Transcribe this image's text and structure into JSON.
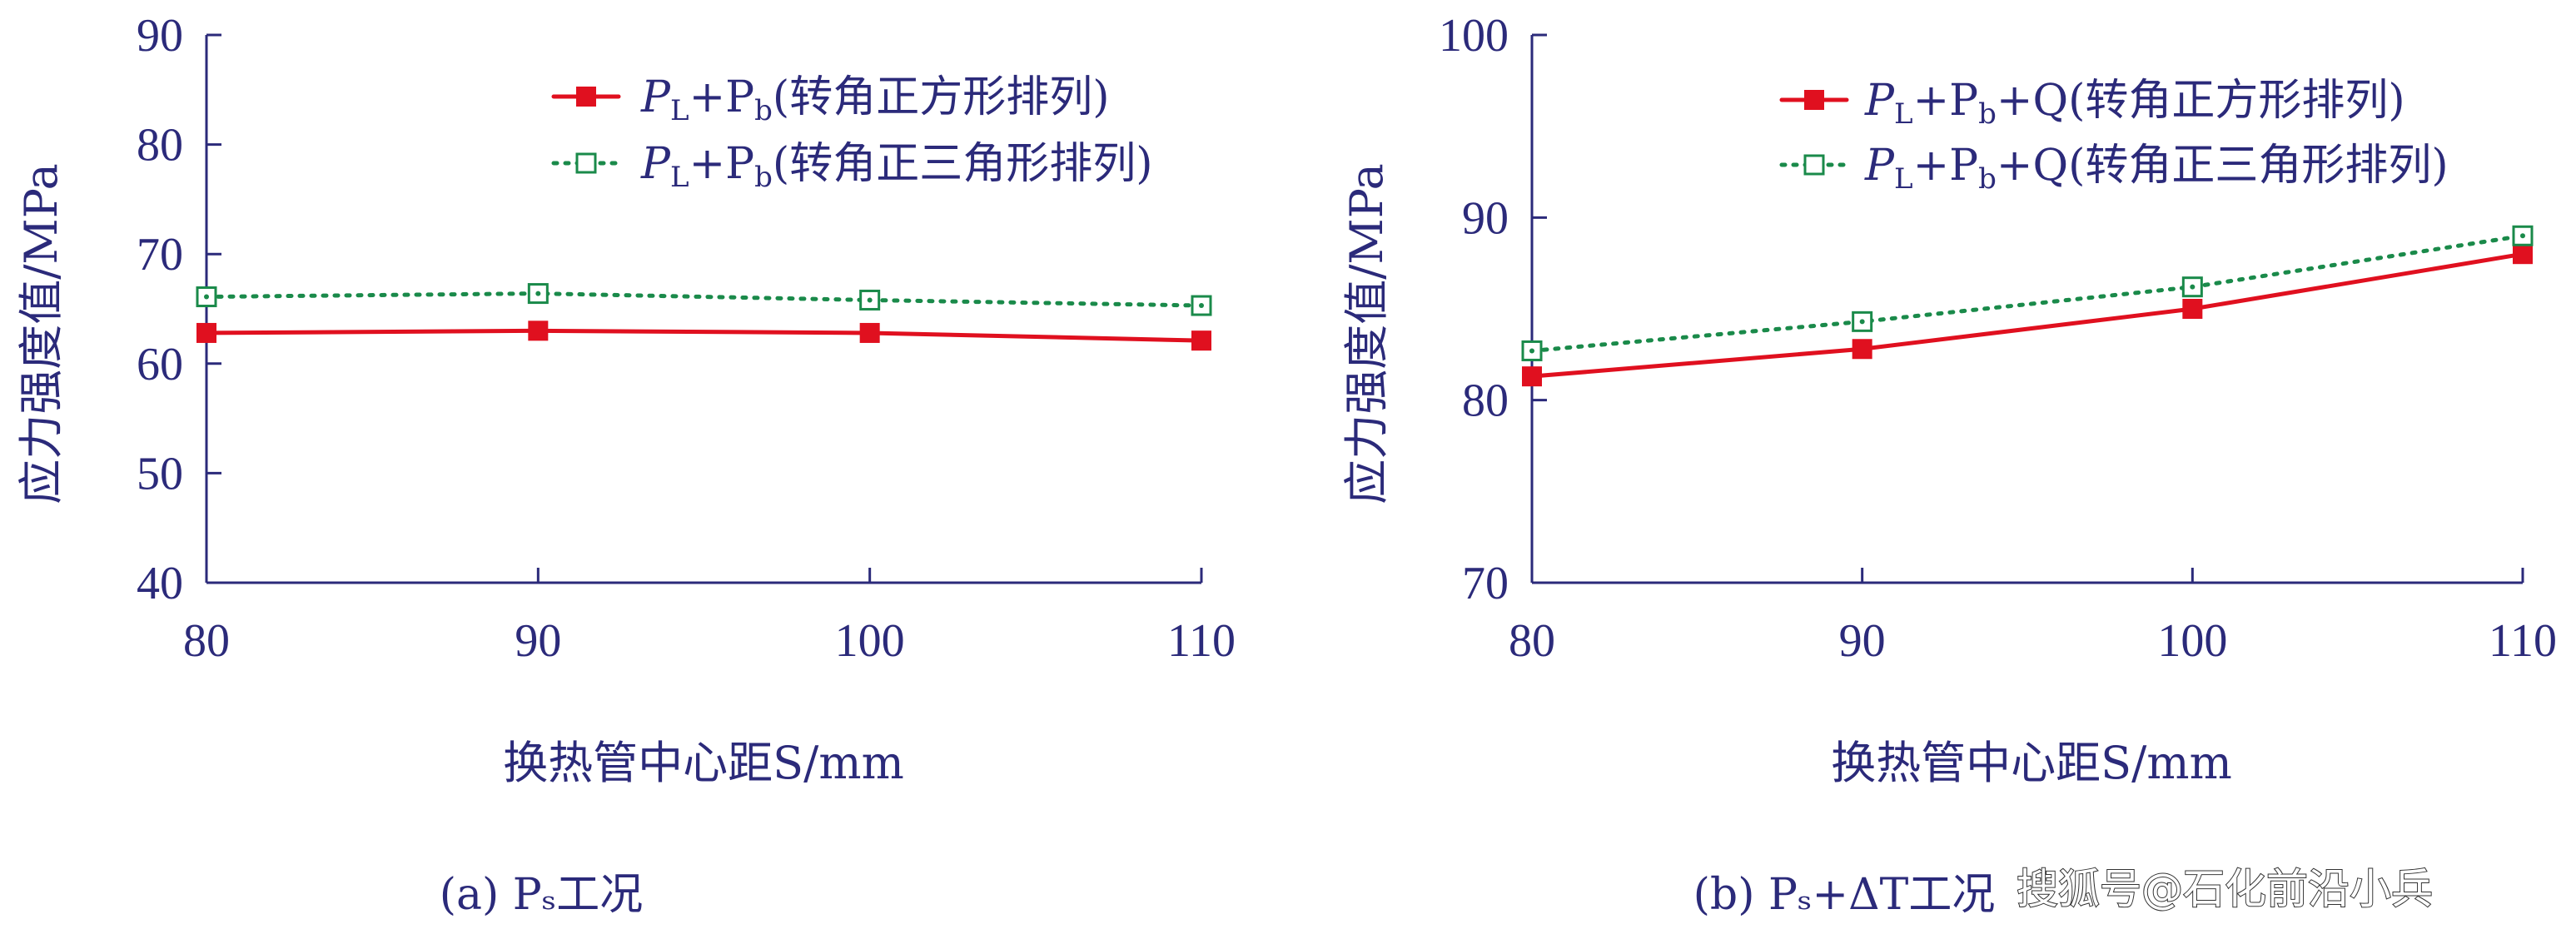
{
  "chart_data": [
    {
      "type": "line",
      "panel": "a",
      "caption": "(a) Pₛ工况",
      "xlabel": "换热管中心距S/mm",
      "ylabel": "应力强度值/MPa",
      "x": [
        80,
        90,
        100,
        110
      ],
      "xticks": [
        "80",
        "90",
        "100",
        "110"
      ],
      "xlim": [
        80,
        110
      ],
      "yticks": [
        "40",
        "50",
        "60",
        "70",
        "80",
        "90"
      ],
      "ylim": [
        40,
        90
      ],
      "grid": false,
      "legend_position": "top-right",
      "series": [
        {
          "name": "PL+Pb(转角正方形排列)",
          "name_parts": [
            "P",
            "L",
            "+P",
            "b",
            "(转角正方形排列)"
          ],
          "values": [
            62.8,
            63.0,
            62.8,
            62.1
          ],
          "color": "#e0101f",
          "style": "solid",
          "marker": "filled-square"
        },
        {
          "name": "PL+Pb(转角正三角形排列)",
          "name_parts": [
            "P",
            "L",
            "+P",
            "b",
            "(转角正三角形排列)"
          ],
          "values": [
            66.1,
            66.4,
            65.8,
            65.3
          ],
          "color": "#1a8a4a",
          "style": "dotted",
          "marker": "open-square"
        }
      ]
    },
    {
      "type": "line",
      "panel": "b",
      "caption": "(b) Pₛ+ΔT工况",
      "xlabel": "换热管中心距S/mm",
      "ylabel": "应力强度值/MPa",
      "x": [
        80,
        90,
        100,
        110
      ],
      "xticks": [
        "80",
        "90",
        "100",
        "110"
      ],
      "xlim": [
        80,
        110
      ],
      "yticks": [
        "70",
        "80",
        "90",
        "100"
      ],
      "ylim": [
        70,
        100
      ],
      "grid": false,
      "legend_position": "top-right",
      "series": [
        {
          "name": "PL+Pb+Q(转角正方形排列)",
          "name_parts": [
            "P",
            "L",
            "+P",
            "b",
            "+Q(转角正方形排列)"
          ],
          "values": [
            81.3,
            82.8,
            85.0,
            88.0
          ],
          "color": "#e0101f",
          "style": "solid",
          "marker": "filled-square"
        },
        {
          "name": "PL+Pb+Q(转角正三角形排列)",
          "name_parts": [
            "P",
            "L",
            "+P",
            "b",
            "+Q(转角正三角形排列)"
          ],
          "values": [
            82.7,
            84.3,
            86.2,
            89.0
          ],
          "color": "#1a8a4a",
          "style": "dotted",
          "marker": "open-square"
        }
      ]
    }
  ],
  "watermark": "搜狐号@石化前沿小兵",
  "colors": {
    "axis": "#2b2a7a",
    "text": "#2b2a7a"
  }
}
